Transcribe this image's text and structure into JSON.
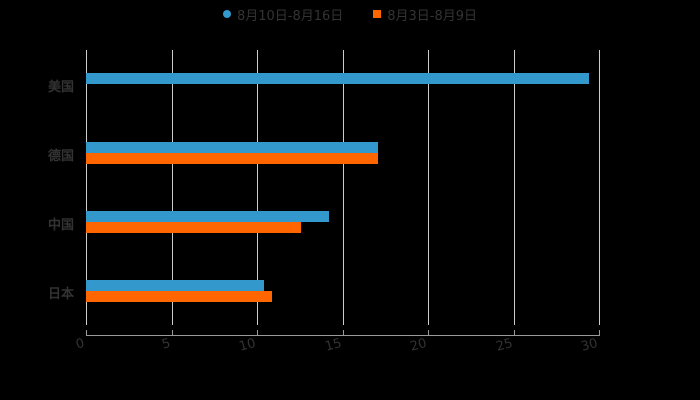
{
  "legend": {
    "items": [
      {
        "label": "8月10日-8月16日",
        "color": "#3399cc",
        "shape": "circle"
      },
      {
        "label": "8月3日-8月9日",
        "color": "#ff6600",
        "shape": "square"
      }
    ]
  },
  "chart_data": {
    "type": "bar",
    "orientation": "horizontal",
    "title": "",
    "xlabel": "",
    "ylabel": "",
    "categories": [
      "美国",
      "德国",
      "中国",
      "日本"
    ],
    "series": [
      {
        "name": "8月10日-8月16日",
        "color": "#3399cc",
        "values": [
          29.4,
          17.1,
          14.2,
          10.4
        ]
      },
      {
        "name": "8月3日-8月9日",
        "color": "#ff6600",
        "values": [
          null,
          17.1,
          12.6,
          10.9
        ]
      }
    ],
    "xlim": [
      0,
      30
    ],
    "xticks": [
      "0",
      "5",
      "10",
      "15",
      "20",
      "25",
      "30"
    ],
    "grid": true,
    "legend_position": "top"
  }
}
